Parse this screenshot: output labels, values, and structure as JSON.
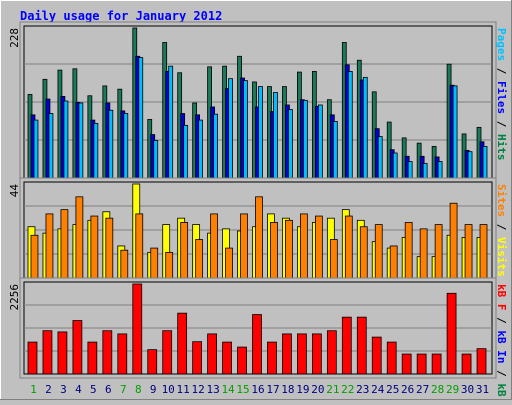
{
  "chart_data": {
    "type": "bar",
    "title": "Daily usage for January 2012",
    "categories": [
      "1",
      "2",
      "3",
      "4",
      "5",
      "6",
      "7",
      "8",
      "9",
      "10",
      "11",
      "12",
      "13",
      "14",
      "15",
      "16",
      "17",
      "18",
      "19",
      "20",
      "21",
      "22",
      "23",
      "24",
      "25",
      "26",
      "27",
      "28",
      "29",
      "30",
      "31"
    ],
    "weekend_days": [
      "1",
      "7",
      "8",
      "14",
      "15",
      "21",
      "22",
      "28",
      "29"
    ],
    "panels": [
      {
        "id": "hits-files-pages",
        "max_label": "228",
        "ylim": [
          0,
          228
        ],
        "label_parts": [
          {
            "text": "Pages",
            "color": "#00c0ff"
          },
          {
            "text": " / ",
            "color": "#000000"
          },
          {
            "text": "Files",
            "color": "#0000ff"
          },
          {
            "text": " / ",
            "color": "#000000"
          },
          {
            "text": "Hits",
            "color": "#008040"
          }
        ],
        "series": [
          {
            "name": "Hits",
            "color": "#1a7a5a",
            "values": [
              127,
              150,
              164,
              166,
              125,
              140,
              135,
              228,
              89,
              206,
              160,
              114,
              169,
              170,
              185,
              146,
              139,
              139,
              161,
              162,
              119,
              206,
              179,
              131,
              85,
              61,
              53,
              48,
              173,
              67,
              77
            ]
          },
          {
            "name": "Files",
            "color": "#0000d8",
            "values": [
              96,
              120,
              124,
              115,
              88,
              114,
              102,
              185,
              66,
              162,
              98,
              96,
              108,
              136,
              152,
              108,
              101,
              111,
              119,
              109,
              96,
              172,
              149,
              75,
              43,
              33,
              33,
              32,
              141,
              42,
              55
            ]
          },
          {
            "name": "Pages",
            "color": "#00bfff",
            "values": [
              88,
              98,
              117,
              114,
              83,
              103,
              98,
              183,
              57,
              170,
              80,
              88,
              97,
              151,
              148,
              139,
              130,
              104,
              118,
              111,
              86,
              162,
              153,
              63,
              38,
              25,
              22,
              25,
              140,
              40,
              48
            ]
          }
        ]
      },
      {
        "id": "visits-sites",
        "max_label": "44",
        "ylim": [
          0,
          44
        ],
        "label_parts": [
          {
            "text": "Sites",
            "color": "#ff8000"
          },
          {
            "text": " / ",
            "color": "#000000"
          },
          {
            "text": "Visits",
            "color": "#ffff00"
          }
        ],
        "series": [
          {
            "name": "Visits",
            "color": "#ffff00",
            "values": [
              24,
              21,
              23,
              25,
              27,
              31,
              15,
              44,
              12,
              25,
              28,
              25,
              21,
              23,
              22,
              24,
              30,
              28,
              24,
              26,
              28,
              32,
              27,
              17,
              14,
              19,
              10,
              10,
              20,
              19,
              19
            ]
          },
          {
            "name": "Sites",
            "color": "#ff8000",
            "values": [
              20,
              30,
              32,
              38,
              29,
              28,
              13,
              30,
              14,
              12,
              26,
              18,
              30,
              14,
              30,
              38,
              26,
              27,
              30,
              29,
              18,
              29,
              24,
              25,
              15,
              26,
              23,
              25,
              35,
              25,
              25
            ]
          }
        ]
      },
      {
        "id": "kbytes",
        "max_label": "2256",
        "ylim": [
          0,
          2256
        ],
        "label_parts": [
          {
            "text": "kB F",
            "color": "#ff0000"
          },
          {
            "text": " / ",
            "color": "#000000"
          },
          {
            "text": "kB In",
            "color": "#0000ff"
          },
          {
            "text": " / ",
            "color": "#000000"
          },
          {
            "text": "kB Out",
            "color": "#008040"
          }
        ],
        "series": [
          {
            "name": "kB F",
            "color": "#ff0000",
            "values": [
              800,
              1085,
              1055,
              1340,
              800,
              1085,
              1005,
              2256,
              610,
              1085,
              1525,
              810,
              1005,
              800,
              675,
              1490,
              800,
              1005,
              1005,
              1005,
              1085,
              1425,
              1425,
              925,
              800,
              500,
              500,
              500,
              2023,
              500,
              635
            ]
          }
        ]
      }
    ]
  }
}
